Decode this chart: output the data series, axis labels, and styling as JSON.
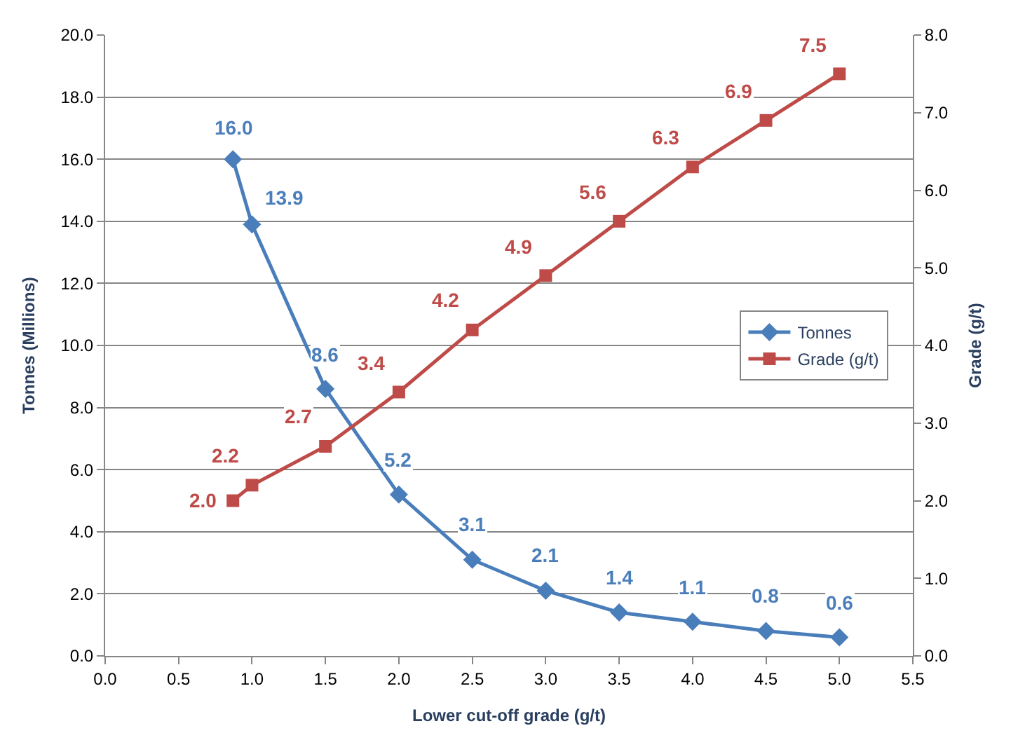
{
  "chart_data": {
    "type": "line",
    "xlabel": "Lower cut-off grade (g/t)",
    "ylabel": "Tonnes (Millions)",
    "y2label": "Grade (g/t)",
    "x": [
      0.87,
      1.0,
      1.5,
      2.0,
      2.5,
      3.0,
      3.5,
      4.0,
      4.5,
      5.0
    ],
    "series": [
      {
        "name": "Tonnes",
        "color": "#4a7ebb",
        "marker": "diamond",
        "values": [
          16.0,
          13.9,
          8.6,
          5.2,
          3.1,
          2.1,
          1.4,
          1.1,
          0.8,
          0.6
        ],
        "value_labels": [
          "16.0",
          "13.9",
          "8.6",
          "5.2",
          "3.1",
          "2.1",
          "1.4",
          "1.1",
          "0.8",
          "0.6"
        ]
      },
      {
        "name": "Grade (g/t)",
        "color": "#be4b48",
        "marker": "square",
        "axis": "y2",
        "values": [
          2.0,
          2.2,
          2.7,
          3.4,
          4.2,
          4.9,
          5.6,
          6.3,
          6.9,
          7.5
        ],
        "value_labels": [
          "2.0",
          "2.2",
          "2.7",
          "3.4",
          "4.2",
          "4.9",
          "5.6",
          "6.3",
          "6.9",
          "7.5"
        ]
      }
    ],
    "xlim": [
      0,
      5.5
    ],
    "xticks": [
      {
        "value": 0,
        "label": "0.0"
      },
      {
        "value": 0.5,
        "label": "0.5"
      },
      {
        "value": 1,
        "label": "1.0"
      },
      {
        "value": 1.5,
        "label": "1.5"
      },
      {
        "value": 2,
        "label": "2.0"
      },
      {
        "value": 2.5,
        "label": "2.5"
      },
      {
        "value": 3,
        "label": "3.0"
      },
      {
        "value": 3.5,
        "label": "3.5"
      },
      {
        "value": 4,
        "label": "4.0"
      },
      {
        "value": 4.5,
        "label": "4.5"
      },
      {
        "value": 5,
        "label": "5.0"
      },
      {
        "value": 5.5,
        "label": "5.5"
      }
    ],
    "ylim": [
      0,
      20
    ],
    "yticks": [
      {
        "value": 0,
        "label": "0.0"
      },
      {
        "value": 2,
        "label": "2.0"
      },
      {
        "value": 4,
        "label": "4.0"
      },
      {
        "value": 6,
        "label": "6.0"
      },
      {
        "value": 8,
        "label": "8.0"
      },
      {
        "value": 10,
        "label": "10.0"
      },
      {
        "value": 12,
        "label": "12.0"
      },
      {
        "value": 14,
        "label": "14.0"
      },
      {
        "value": 16,
        "label": "16.0"
      },
      {
        "value": 18,
        "label": "18.0"
      },
      {
        "value": 20,
        "label": "20.0"
      }
    ],
    "y2lim": [
      0,
      8
    ],
    "y2ticks": [
      {
        "value": 0,
        "label": "0.0"
      },
      {
        "value": 1,
        "label": "1.0"
      },
      {
        "value": 2,
        "label": "2.0"
      },
      {
        "value": 3,
        "label": "3.0"
      },
      {
        "value": 4,
        "label": "4.0"
      },
      {
        "value": 5,
        "label": "5.0"
      },
      {
        "value": 6,
        "label": "6.0"
      },
      {
        "value": 7,
        "label": "7.0"
      },
      {
        "value": 8,
        "label": "8.0"
      }
    ],
    "grid": "y",
    "legend": "right",
    "line_style": "solid"
  }
}
